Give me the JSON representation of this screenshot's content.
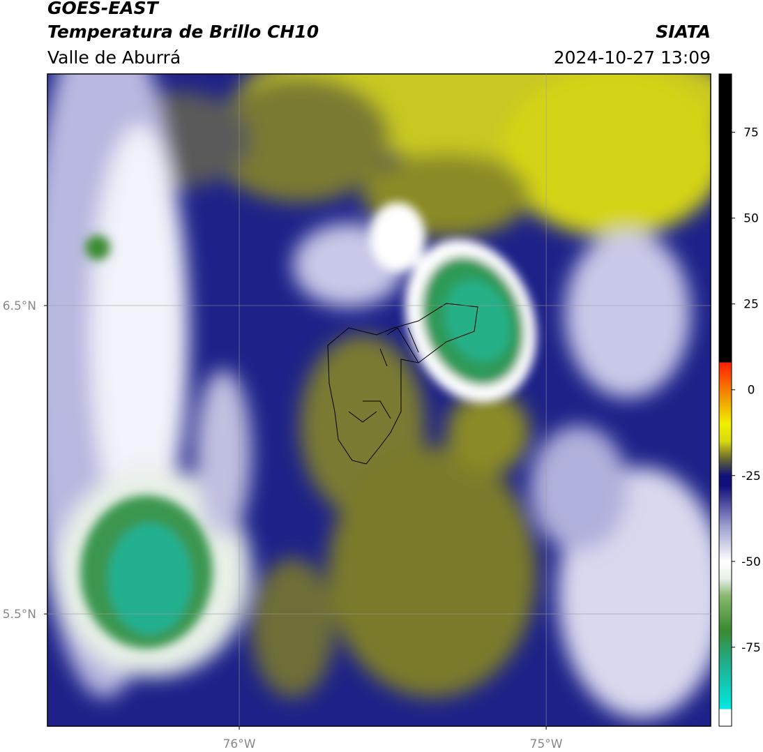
{
  "header": {
    "title": "GOES-EAST",
    "subtitle": "Temperatura de Brillo CH10",
    "region": "Valle de Aburrá",
    "source": "SIATA",
    "datetime": "2024-10-27 13:09"
  },
  "map": {
    "xlim": [
      -76.625,
      -74.464
    ],
    "ylim": [
      5.136,
      7.251
    ],
    "xticks": [
      {
        "value": -76,
        "label": "76°W"
      },
      {
        "value": -75,
        "label": "75°W"
      }
    ],
    "yticks": [
      {
        "value": 6.5,
        "label": "6.5°N"
      },
      {
        "value": 5.5,
        "label": "5.5°N"
      }
    ],
    "grid": true
  },
  "colorbar": {
    "lim": [
      -98,
      92
    ],
    "ticks": [
      75,
      50,
      25,
      0,
      -25,
      -50,
      -75
    ],
    "stops": [
      {
        "value": -98,
        "color": "#ffffff"
      },
      {
        "value": -93,
        "color": "#ffffff"
      },
      {
        "value": -93,
        "color": "#00e8e0"
      },
      {
        "value": -80,
        "color": "#20b090"
      },
      {
        "value": -70,
        "color": "#3a8a30"
      },
      {
        "value": -60,
        "color": "#8ab870"
      },
      {
        "value": -55,
        "color": "#e8f0e8"
      },
      {
        "value": -50,
        "color": "#ffffff"
      },
      {
        "value": -40,
        "color": "#a0a0d0"
      },
      {
        "value": -28,
        "color": "#10107a"
      },
      {
        "value": -25,
        "color": "#10107a"
      },
      {
        "value": -20,
        "color": "#6a6a30"
      },
      {
        "value": -15,
        "color": "#d8d810"
      },
      {
        "value": -10,
        "color": "#f0f000"
      },
      {
        "value": -3,
        "color": "#f0a000"
      },
      {
        "value": 5,
        "color": "#ff4000"
      },
      {
        "value": 8,
        "color": "#ff2000"
      },
      {
        "value": 8,
        "color": "#000000"
      },
      {
        "value": 92,
        "color": "#000000"
      }
    ]
  }
}
